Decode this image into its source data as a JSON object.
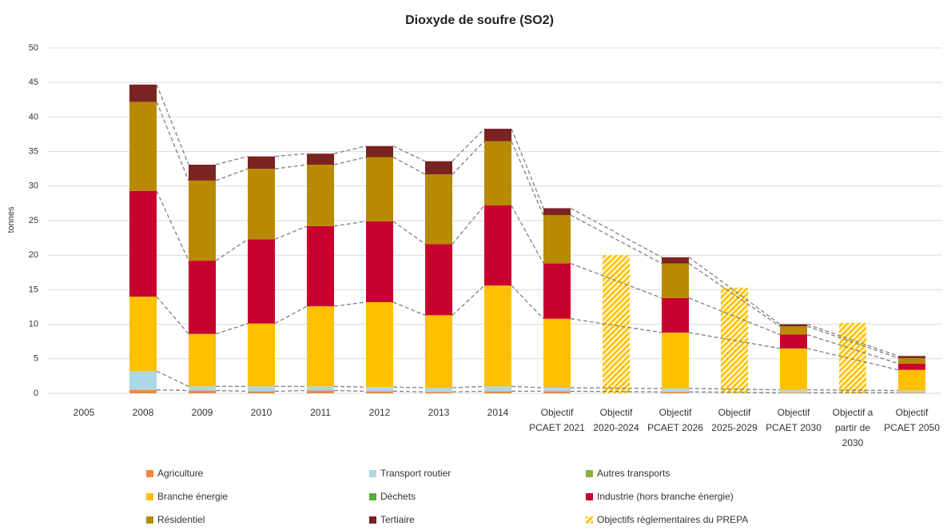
{
  "chart_data": {
    "type": "bar",
    "stacked": true,
    "title": "Dioxyde de soufre (SO2)",
    "y_label": "tonnes",
    "categories": [
      "2005",
      "2008",
      "2009",
      "2010",
      "2011",
      "2012",
      "2013",
      "2014",
      "Objectif PCAET 2021",
      "Objectif 2020-2024",
      "Objectif PCAET 2026",
      "Objectif 2025-2029",
      "Objectif PCAET 2030",
      "Objectif a partir de 2030",
      "Objectif PCAET 2050"
    ],
    "series": [
      {
        "name": "Agriculture",
        "color": "#f4873c",
        "values": [
          null,
          0.5,
          0.4,
          0.3,
          0.4,
          0.3,
          0.2,
          0.3,
          0.3,
          null,
          0.2,
          null,
          0.1,
          null,
          0.1
        ]
      },
      {
        "name": "Transport routier",
        "color": "#add8e6",
        "values": [
          null,
          2.7,
          0.6,
          0.7,
          0.6,
          0.6,
          0.6,
          0.7,
          0.5,
          null,
          0.5,
          null,
          0.4,
          null,
          0.3
        ]
      },
      {
        "name": "Autres transports",
        "color": "#8db040",
        "values": [
          null,
          0,
          0,
          0,
          0,
          0,
          0,
          0,
          0,
          null,
          0,
          null,
          0,
          null,
          0
        ]
      },
      {
        "name": "Branche énergie",
        "color": "#ffc000",
        "values": [
          null,
          10.8,
          7.6,
          9.1,
          11.6,
          12.3,
          10.5,
          14.6,
          10.0,
          null,
          8.1,
          null,
          6.0,
          null,
          3.0
        ]
      },
      {
        "name": "Déchets",
        "color": "#5cb030",
        "values": [
          null,
          0,
          0,
          0,
          0,
          0,
          0,
          0,
          0,
          null,
          0,
          null,
          0,
          null,
          0
        ]
      },
      {
        "name": "Industrie (hors branche énergie)",
        "color": "#c8002e",
        "values": [
          null,
          15.3,
          10.6,
          12.2,
          11.6,
          11.7,
          10.3,
          11.6,
          8.0,
          null,
          5.0,
          null,
          2.0,
          null,
          0.9
        ]
      },
      {
        "name": "Résidentiel",
        "color": "#b88a00",
        "values": [
          null,
          12.9,
          11.6,
          10.2,
          8.9,
          9.3,
          10.1,
          9.3,
          7.0,
          null,
          5.0,
          null,
          1.2,
          null,
          0.8
        ]
      },
      {
        "name": "Tertiaire",
        "color": "#7b2222",
        "values": [
          null,
          2.5,
          2.3,
          1.8,
          1.6,
          1.6,
          1.9,
          1.8,
          1.0,
          null,
          0.9,
          null,
          0.3,
          null,
          0.3
        ]
      },
      {
        "name": "Objectifs règlementaires du PREPA",
        "color": "#ffc000",
        "hatch": true,
        "values": [
          null,
          null,
          null,
          null,
          null,
          null,
          null,
          null,
          null,
          20,
          null,
          15.3,
          null,
          10.2,
          null
        ]
      }
    ],
    "ylim": [
      0,
      50
    ],
    "yticks": [
      0,
      5,
      10,
      15,
      20,
      25,
      30,
      35,
      40,
      45,
      50
    ],
    "grid": true,
    "legend": "bottom"
  }
}
